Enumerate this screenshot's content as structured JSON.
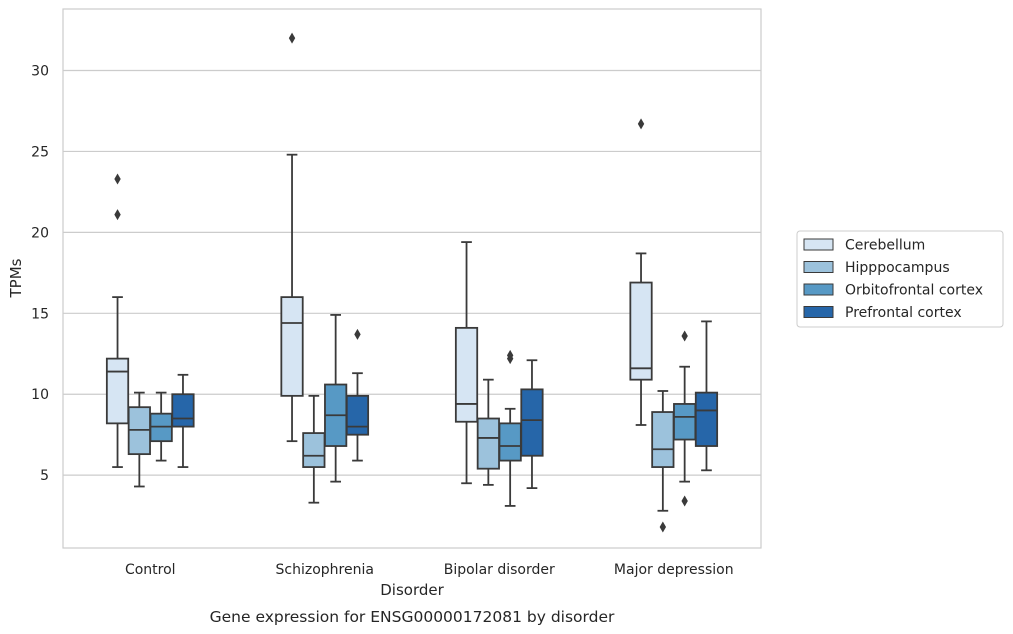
{
  "chart_data": {
    "type": "boxplot",
    "title": "",
    "caption": "Gene expression for ENSG00000172081 by disorder",
    "xlabel": "Disorder",
    "ylabel": "TPMs",
    "ylim": [
      0.5,
      33.8
    ],
    "yticks": [
      5,
      10,
      15,
      20,
      25,
      30
    ],
    "grid": "horizontal",
    "legend_position": "right",
    "categories": [
      "Control",
      "Schizophrenia",
      "Bipolar disorder",
      "Major depression"
    ],
    "series": [
      {
        "name": "Cerebellum",
        "color": "#d6e5f3",
        "boxes": [
          {
            "whislo": 5.5,
            "q1": 8.2,
            "med": 11.4,
            "q3": 12.2,
            "whishi": 16.0,
            "fliers": [
              21.1,
              23.3
            ]
          },
          {
            "whislo": 7.1,
            "q1": 9.9,
            "med": 14.4,
            "q3": 16.0,
            "whishi": 24.8,
            "fliers": [
              32.0
            ]
          },
          {
            "whislo": 4.5,
            "q1": 8.3,
            "med": 9.4,
            "q3": 14.1,
            "whishi": 19.4,
            "fliers": []
          },
          {
            "whislo": 8.1,
            "q1": 10.9,
            "med": 11.6,
            "q3": 16.9,
            "whishi": 18.7,
            "fliers": [
              26.7
            ]
          }
        ]
      },
      {
        "name": "Hipppocampus",
        "color": "#9cc2dc",
        "boxes": [
          {
            "whislo": 4.3,
            "q1": 6.3,
            "med": 7.8,
            "q3": 9.2,
            "whishi": 10.1,
            "fliers": []
          },
          {
            "whislo": 3.3,
            "q1": 5.5,
            "med": 6.2,
            "q3": 7.6,
            "whishi": 9.9,
            "fliers": []
          },
          {
            "whislo": 4.4,
            "q1": 5.4,
            "med": 7.3,
            "q3": 8.5,
            "whishi": 10.9,
            "fliers": []
          },
          {
            "whislo": 2.8,
            "q1": 5.5,
            "med": 6.6,
            "q3": 8.9,
            "whishi": 10.2,
            "fliers": [
              1.8
            ]
          }
        ]
      },
      {
        "name": "Orbitofrontal cortex",
        "color": "#5799c5",
        "boxes": [
          {
            "whislo": 5.9,
            "q1": 7.1,
            "med": 8.0,
            "q3": 8.8,
            "whishi": 10.1,
            "fliers": []
          },
          {
            "whislo": 4.6,
            "q1": 6.8,
            "med": 8.7,
            "q3": 10.6,
            "whishi": 14.9,
            "fliers": []
          },
          {
            "whislo": 3.1,
            "q1": 5.9,
            "med": 6.8,
            "q3": 8.2,
            "whishi": 9.1,
            "fliers": [
              12.2,
              12.4
            ]
          },
          {
            "whislo": 4.6,
            "q1": 7.2,
            "med": 8.6,
            "q3": 9.4,
            "whishi": 11.7,
            "fliers": [
              13.6,
              3.4
            ]
          }
        ]
      },
      {
        "name": "Prefrontal cortex",
        "color": "#2666a9",
        "boxes": [
          {
            "whislo": 5.5,
            "q1": 8.0,
            "med": 8.5,
            "q3": 10.0,
            "whishi": 11.2,
            "fliers": []
          },
          {
            "whislo": 5.9,
            "q1": 7.5,
            "med": 8.0,
            "q3": 9.9,
            "whishi": 11.3,
            "fliers": [
              13.7
            ]
          },
          {
            "whislo": 4.2,
            "q1": 6.2,
            "med": 8.4,
            "q3": 10.3,
            "whishi": 12.1,
            "fliers": []
          },
          {
            "whislo": 5.3,
            "q1": 6.8,
            "med": 9.0,
            "q3": 10.1,
            "whishi": 14.5,
            "fliers": []
          }
        ]
      }
    ]
  }
}
